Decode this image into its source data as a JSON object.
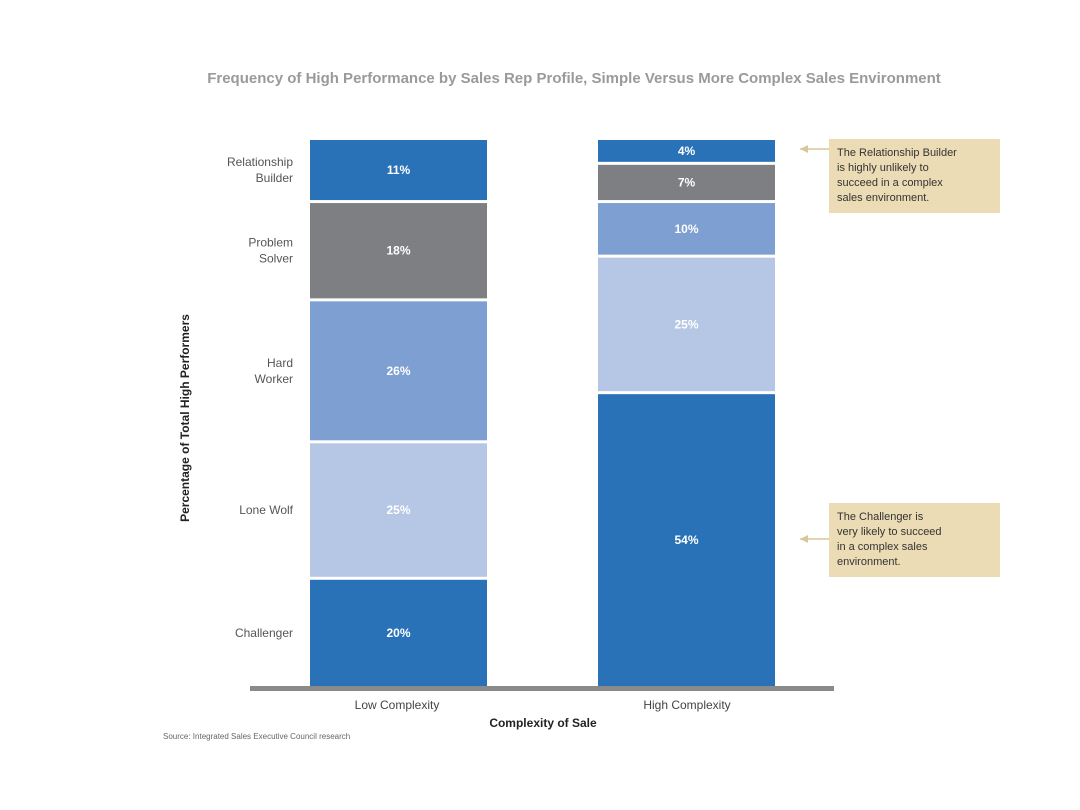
{
  "chart_data": {
    "type": "bar",
    "stacked": true,
    "title": "Frequency of High Performance by Sales Rep Profile, Simple Versus More Complex Sales Environment",
    "xlabel": "Complexity of Sale",
    "ylabel": "Percentage of Total High Performers",
    "categories": [
      "Low Complexity",
      "High Complexity"
    ],
    "series": [
      {
        "name": "Challenger",
        "label": "Challenger",
        "values": [
          20,
          54
        ],
        "value_labels": [
          "20%",
          "54%"
        ],
        "color": "#2a72b7"
      },
      {
        "name": "Lone Wolf",
        "label": "Lone Wolf",
        "values": [
          25,
          25
        ],
        "value_labels": [
          "25%",
          "25%"
        ],
        "color": "#b6c6e5"
      },
      {
        "name": "Hard Worker",
        "label": "Hard\nWorker",
        "values": [
          26,
          10
        ],
        "value_labels": [
          "26%",
          "10%"
        ],
        "color": "#7d9fd1"
      },
      {
        "name": "Problem Solver",
        "label": "Problem\nSolver",
        "values": [
          18,
          7
        ],
        "value_labels": [
          "18%",
          "7%"
        ],
        "color": "#7d7f83"
      },
      {
        "name": "Relationship Builder",
        "label": "Relationship\nBuilder",
        "values": [
          11,
          4
        ],
        "value_labels": [
          "11%",
          "4%"
        ],
        "color": "#2a72b7"
      }
    ],
    "ylim": [
      0,
      100
    ],
    "source": "Source: Integrated Sales Executive Council research",
    "axis_color": "#8a8a8a"
  },
  "annotations": [
    {
      "text": "The Relationship Builder\nis highly unlikely to\nsucceed in a complex\nsales environment."
    },
    {
      "text": "The Challenger is\nvery likely to succeed\nin a complex sales\nenvironment."
    }
  ]
}
